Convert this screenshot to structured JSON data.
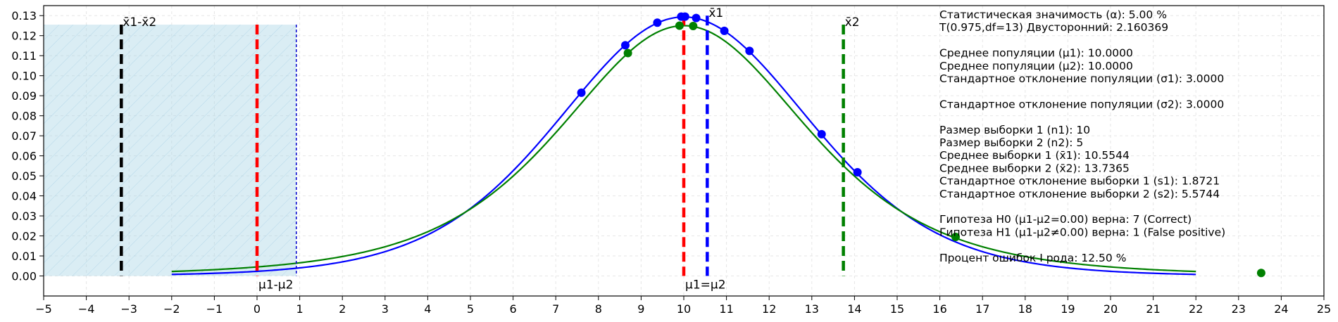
{
  "chart_data": {
    "type": "line",
    "xlim": [
      -5,
      25
    ],
    "ylim": [
      -0.01,
      0.135
    ],
    "x_ticks": [
      -5,
      -4,
      -3,
      -2,
      -1,
      0,
      1,
      2,
      3,
      4,
      5,
      6,
      7,
      8,
      9,
      10,
      11,
      12,
      13,
      14,
      15,
      16,
      17,
      18,
      19,
      20,
      21,
      22,
      23,
      24,
      25
    ],
    "x_tick_labels": [
      "−5",
      "−4",
      "−3",
      "−2",
      "−1",
      "0",
      "1",
      "2",
      "3",
      "4",
      "5",
      "6",
      "7",
      "8",
      "9",
      "10",
      "11",
      "12",
      "13",
      "14",
      "15",
      "16",
      "17",
      "18",
      "19",
      "20",
      "21",
      "22",
      "23",
      "24",
      "25"
    ],
    "y_ticks": [
      0.0,
      0.01,
      0.02,
      0.03,
      0.04,
      0.05,
      0.06,
      0.07,
      0.08,
      0.09,
      0.1,
      0.11,
      0.12,
      0.13
    ],
    "y_tick_labels": [
      "0.00",
      "0.01",
      "0.02",
      "0.03",
      "0.04",
      "0.05",
      "0.06",
      "0.07",
      "0.08",
      "0.09",
      "0.10",
      "0.11",
      "0.12",
      "0.13"
    ],
    "grid": true,
    "series": [
      {
        "color": "#0000ff",
        "curve": {
          "x_range": [
            -2,
            22
          ],
          "center": 10,
          "scale": 3.0,
          "dof": 9,
          "pdf": "t"
        },
        "points": [
          {
            "x": 7.6,
            "y": 0.0915
          },
          {
            "x": 8.63,
            "y": 0.1152
          },
          {
            "x": 9.38,
            "y": 0.1265
          },
          {
            "x": 9.94,
            "y": 0.1295
          },
          {
            "x": 10.03,
            "y": 0.1295
          },
          {
            "x": 10.29,
            "y": 0.1288
          },
          {
            "x": 10.95,
            "y": 0.1224
          },
          {
            "x": 11.54,
            "y": 0.1124
          },
          {
            "x": 13.23,
            "y": 0.0708
          },
          {
            "x": 14.07,
            "y": 0.0518
          }
        ]
      },
      {
        "color": "#008000",
        "curve": {
          "x_range": [
            -2,
            22
          ],
          "center": 10,
          "scale": 3.0,
          "dof": 4,
          "pdf": "t"
        },
        "points": [
          {
            "x": 8.69,
            "y": 0.1113
          },
          {
            "x": 9.9,
            "y": 0.125
          },
          {
            "x": 10.22,
            "y": 0.1248
          },
          {
            "x": 16.37,
            "y": 0.0195
          },
          {
            "x": 23.53,
            "y": 0.0015
          }
        ]
      }
    ],
    "shaded_region": {
      "x": [
        -5,
        0.92
      ],
      "y_top": 0.1255,
      "color": "#add8e6"
    },
    "vertical_lines": [
      {
        "x": -3.18,
        "y_top": 0.1255,
        "color": "#000000",
        "style": "dashed",
        "width": 4.5,
        "label": "x̄1-x̄2",
        "label_pos": "top"
      },
      {
        "x": 0.0,
        "y_top": 0.1255,
        "color": "#ff0000",
        "style": "dashed",
        "width": 4.5,
        "label": "μ1-μ2",
        "label_pos": "bottom"
      },
      {
        "x": 0.92,
        "y_top": 0.1255,
        "color": "#0000cc",
        "style": "dashed-thin",
        "width": 1.5,
        "label": "",
        "label_pos": "none"
      },
      {
        "x": 10.0,
        "y_top": 0.13,
        "color": "#ff0000",
        "style": "dashed",
        "width": 4.5,
        "label": "μ1=μ2",
        "label_pos": "bottom"
      },
      {
        "x": 10.55,
        "y_top": 0.13,
        "color": "#0000ff",
        "style": "dashed",
        "width": 4.5,
        "label": "x̄1",
        "label_pos": "top"
      },
      {
        "x": 13.74,
        "y_top": 0.1255,
        "color": "#008000",
        "style": "dashed",
        "width": 4.5,
        "label": "x̄2",
        "label_pos": "top"
      }
    ],
    "stats_text": [
      "Статистическая значимость (α): 5.00 %",
      "T(0.975,df=13) Двусторонний: 2.160369",
      "",
      "Среднее популяции (μ1): 10.0000",
      "Среднее популяции (μ2): 10.0000",
      "Стандартное отклонение популяции (σ1): 3.0000",
      "",
      "Стандартное отклонение популяции (σ2): 3.0000",
      "",
      "Размер выборки 1 (n1): 10",
      "Размер выборки 2 (n2): 5",
      "Среднее выборки 1 (x̄1): 10.5544",
      "Среднее выборки 2 (x̄2): 13.7365",
      "Стандартное отклонение выборки 1 (s1): 1.8721",
      "Стандартное отклонение выборки 2 (s2): 5.5744",
      "",
      "Гипотеза H0 (μ1-μ2=0.00) верна: 7 (Correct)",
      "Гипотеза H1 (μ1-μ2≠0.00) верна: 1 (False positive)",
      "",
      "Процент ошибок I рода: 12.50 %"
    ]
  }
}
